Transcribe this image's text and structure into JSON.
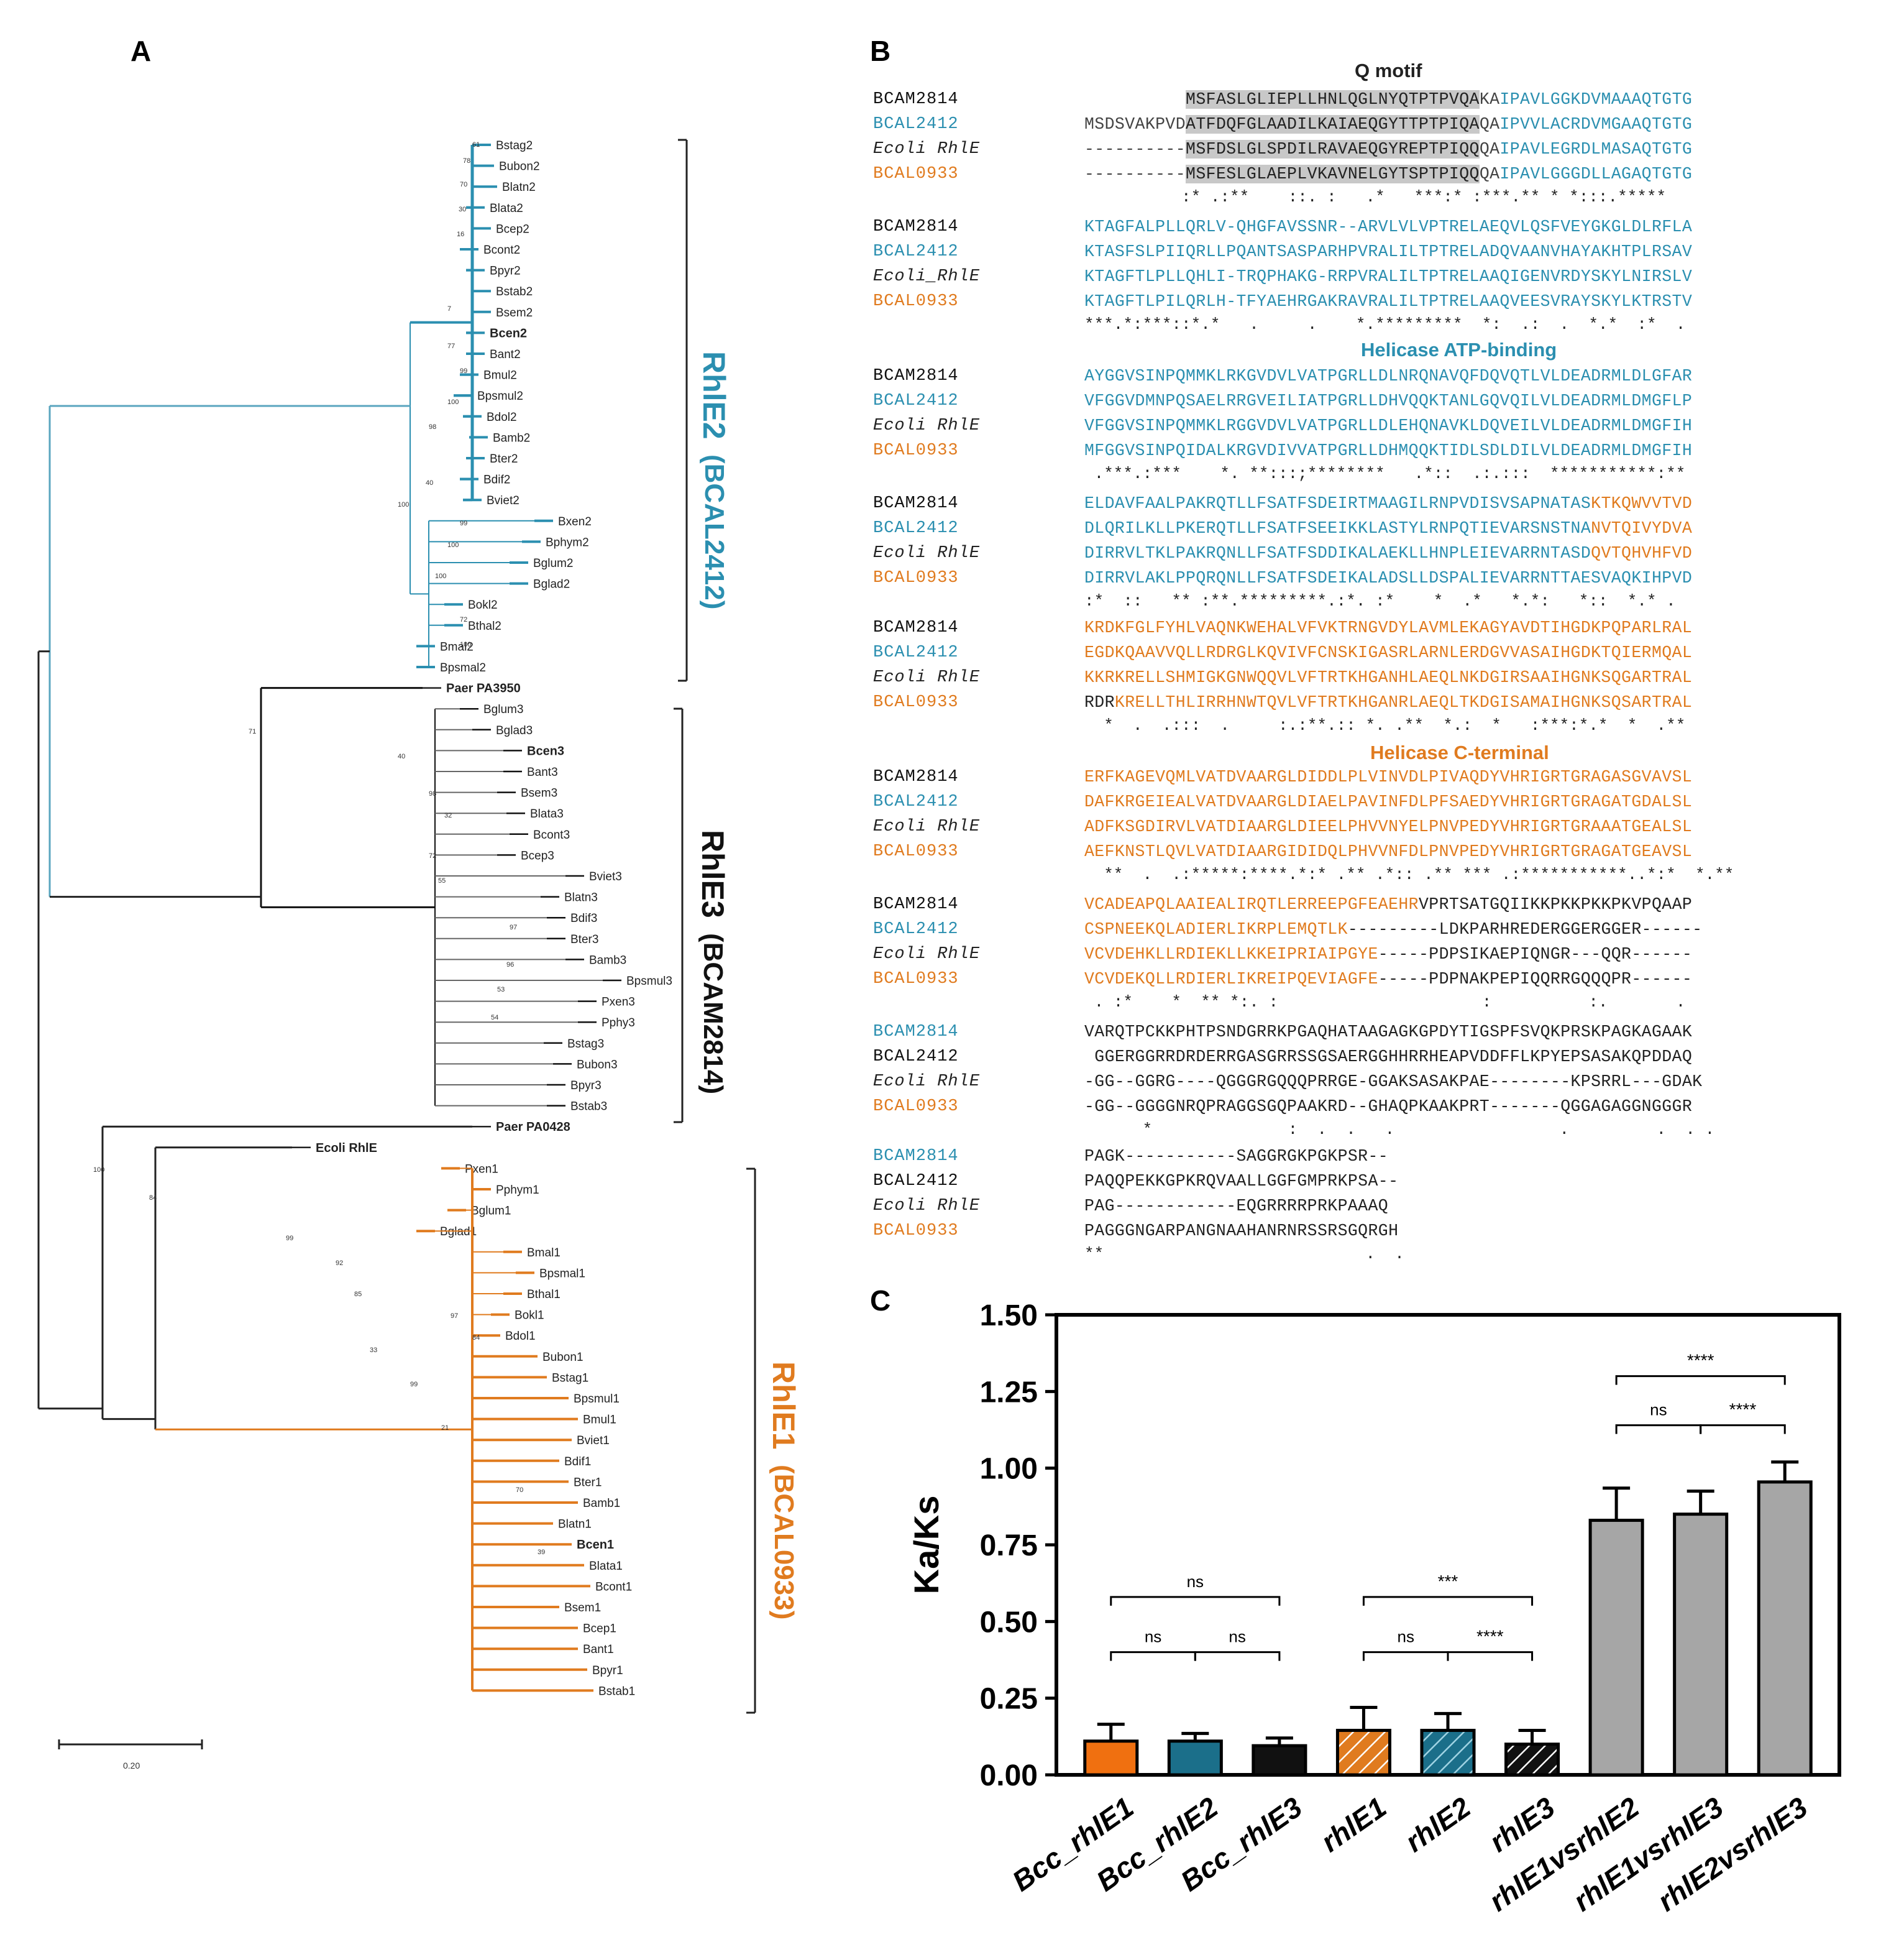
{
  "panels": {
    "a": "A",
    "b": "B",
    "c": "C"
  },
  "colors": {
    "rhle1": "#e07b1f",
    "rhle2": "#2b8fb0",
    "rhle3": "#111111",
    "other": "#222222",
    "highlight": "#c8c8c8",
    "bar_grey": "#a6a6a6",
    "bar_teal": "#1b6f8a"
  },
  "tree": {
    "scale_label": "0.20",
    "clades": {
      "rhle2": {
        "name": "RhlE2",
        "locus": "(BCAL2412)"
      },
      "rhle3": {
        "name": "RhlE3",
        "locus": "(BCAM2814)"
      },
      "rhle1": {
        "name": "RhlE1",
        "locus": "(BCAL0933)"
      }
    },
    "rhle2_leaves": [
      "Bstag2",
      "Bubon2",
      "Blatn2",
      "Blata2",
      "Bcep2",
      "Bcont2",
      "Bpyr2",
      "Bstab2",
      "Bsem2",
      "Bcen2",
      "Bant2",
      "Bmul2",
      "Bpsmul2",
      "Bdol2",
      "Bamb2",
      "Bter2",
      "Bdif2",
      "Bviet2",
      "Bxen2",
      "Bphym2",
      "Bglum2",
      "Bglad2",
      "Bokl2",
      "Bthal2",
      "Bmal2",
      "Bpsmal2"
    ],
    "mid_leaves": [
      "Paer PA3950"
    ],
    "rhle3_leaves": [
      "Bglum3",
      "Bglad3",
      "Bcen3",
      "Bant3",
      "Bsem3",
      "Blata3",
      "Bcont3",
      "Bcep3",
      "Bviet3",
      "Blatn3",
      "Bdif3",
      "Bter3",
      "Bamb3",
      "Bpsmul3",
      "Pxen3",
      "Pphy3",
      "Bstag3",
      "Bubon3",
      "Bpyr3",
      "Bstab3"
    ],
    "outer_leaves": [
      "Paer PA0428",
      "Ecoli RhlE"
    ],
    "rhle1_leaves": [
      "Pxen1",
      "Pphym1",
      "Bglum1",
      "Bglad1",
      "Bmal1",
      "Bpsmal1",
      "Bthal1",
      "Bokl1",
      "Bdol1",
      "Bubon1",
      "Bstag1",
      "Bpsmul1",
      "Bmul1",
      "Bviet1",
      "Bdif1",
      "Bter1",
      "Bamb1",
      "Blatn1",
      "Bcen1",
      "Blata1",
      "Bcont1",
      "Bsem1",
      "Bcep1",
      "Bant1",
      "Bpyr1",
      "Bstab1"
    ],
    "bold_leaves": [
      "Bcen2",
      "Paer PA3950",
      "Bcen3",
      "Paer PA0428",
      "Ecoli RhlE",
      "Bcen1"
    ],
    "bootstrap_values": [
      "61",
      "78",
      "70",
      "30",
      "16",
      "7",
      "77",
      "99",
      "100",
      "98",
      "40",
      "100",
      "99",
      "100",
      "100",
      "72",
      "100",
      "71",
      "40",
      "98",
      "32",
      "72",
      "55",
      "97",
      "96",
      "53",
      "54",
      "100",
      "84",
      "99",
      "92",
      "85",
      "97",
      "84",
      "33",
      "99",
      "21",
      "70",
      "39"
    ]
  },
  "alignment": {
    "domains": {
      "q_motif": "Q motif",
      "atp_binding": "Helicase ATP-binding",
      "c_terminal": "Helicase C-terminal"
    },
    "blocks": [
      {
        "rows": [
          {
            "name": "BCAM2814",
            "name_color": "#111111",
            "segments": [
              {
                "t": "          ",
                "c": "#444444"
              },
              {
                "t": "MSFASLGLIEPLLHNLQGLNYQTPTPVQA",
                "c": "#222222",
                "h": true
              },
              {
                "t": "KA",
                "c": "#444444"
              },
              {
                "t": "IPAVLGGKDVMAAAQTGTG",
                "c": "#2b8fb0"
              }
            ]
          },
          {
            "name": "BCAL2412",
            "name_color": "#2b8fb0",
            "segments": [
              {
                "t": "MSDSVAKPVD",
                "c": "#444444"
              },
              {
                "t": "ATFDQFGLAADILKAIAEQGYTTPTPIQA",
                "c": "#222222",
                "h": true
              },
              {
                "t": "QA",
                "c": "#444444"
              },
              {
                "t": "IPVVLACRDVMGAAQTGTG",
                "c": "#2b8fb0"
              }
            ]
          },
          {
            "name": "Ecoli RhlE",
            "name_color": "#222222",
            "italic": true,
            "segments": [
              {
                "t": "----------",
                "c": "#444444"
              },
              {
                "t": "MSFDSLGLSPDILRAVAEQGYREPTPIQQ",
                "c": "#222222",
                "h": true
              },
              {
                "t": "QA",
                "c": "#444444"
              },
              {
                "t": "IPAVLEGRDLMASAQTGTG",
                "c": "#2b8fb0"
              }
            ]
          },
          {
            "name": "BCAL0933",
            "name_color": "#e07b1f",
            "segments": [
              {
                "t": "----------",
                "c": "#444444"
              },
              {
                "t": "MSFESLGLAEPLVKAVNELGYTSPTPIQQ",
                "c": "#222222",
                "h": true
              },
              {
                "t": "QA",
                "c": "#444444"
              },
              {
                "t": "IPAVLGGGDLLAGAQTGTG",
                "c": "#2b8fb0"
              }
            ]
          }
        ],
        "cons": "          :* .:**    ::. :   .*   ***:* :***.** * *:::.*****"
      },
      {
        "rows": [
          {
            "name": "BCAM2814",
            "name_color": "#111111",
            "segments": [
              {
                "t": "KTAGFALPLLQRLV-QHGFAVSSNR--ARVLVLVPTRELAEQVLQSFVEYGKGLDLRFLA",
                "c": "#2b8fb0"
              }
            ]
          },
          {
            "name": "BCAL2412",
            "name_color": "#2b8fb0",
            "segments": [
              {
                "t": "KTASFSLPIIQRLLPQANTSASPARHPVRALILTPTRELADQVAANVHAYAKHTPLRSAV",
                "c": "#2b8fb0"
              }
            ]
          },
          {
            "name": "Ecoli_RhlE",
            "name_color": "#222222",
            "italic": true,
            "segments": [
              {
                "t": "KTAGFTLPLLQHLI-TRQPHAKG-RRPVRALILTPTRELAAQIGENVRDYSKYLNIRSLV",
                "c": "#2b8fb0"
              }
            ]
          },
          {
            "name": "BCAL0933",
            "name_color": "#e07b1f",
            "segments": [
              {
                "t": "KTAGFTLPILQRLH-TFYAEHRGAKRAVRALILTPTRELAAQVEESVRAYSKYLKTRSTV",
                "c": "#2b8fb0"
              }
            ]
          }
        ],
        "cons": "***.*:***::*.*   .     .    *.*********  *:  .:  .  *.*  :*  ."
      },
      {
        "rows": [
          {
            "name": "BCAM2814",
            "name_color": "#111111",
            "segments": [
              {
                "t": "AYGGVSINPQMMKLRKGVDVLVATPGRLLDLNRQNAVQFDQVQTLVLDEADRMLDLGFAR",
                "c": "#2b8fb0"
              }
            ]
          },
          {
            "name": "BCAL2412",
            "name_color": "#2b8fb0",
            "segments": [
              {
                "t": "VFGGVDMNPQSAELRRGVEILIATPGRLLDHVQQKTANLGQVQILVLDEADRMLDMGFLP",
                "c": "#2b8fb0"
              }
            ]
          },
          {
            "name": "Ecoli RhlE",
            "name_color": "#222222",
            "italic": true,
            "segments": [
              {
                "t": "VFGGVSINPQMMKLRGGVDVLVATPGRLLDLEHQNAVKLDQVEILVLDEADRMLDMGFIH",
                "c": "#2b8fb0"
              }
            ]
          },
          {
            "name": "BCAL0933",
            "name_color": "#e07b1f",
            "segments": [
              {
                "t": "MFGGVSINPQIDALKRGVDIVVATPGRLLDHMQQKTIDLSDLDILVLDEADRMLDMGFIH",
                "c": "#2b8fb0"
              }
            ]
          }
        ],
        "cons": " .***.:***    *. **:::;********   .*::  .:.:::  ***********:**"
      },
      {
        "rows": [
          {
            "name": "BCAM2814",
            "name_color": "#111111",
            "segments": [
              {
                "t": "ELDAVFAALPAKRQTLLFSATFSDEIRTMAAGILRNPVDISVSAPNATAS",
                "c": "#2b8fb0"
              },
              {
                "t": "KTKQWVVTVD",
                "c": "#e07b1f"
              }
            ]
          },
          {
            "name": "BCAL2412",
            "name_color": "#2b8fb0",
            "segments": [
              {
                "t": "DLQRILKLLPKERQTLLFSATFSEEIKKLASTYLRNPQTIEVARSNSTNA",
                "c": "#2b8fb0"
              },
              {
                "t": "NVTQIVYDVA",
                "c": "#e07b1f"
              }
            ]
          },
          {
            "name": "Ecoli RhlE",
            "name_color": "#222222",
            "italic": true,
            "segments": [
              {
                "t": "DIRRVLTKLPAKRQNLLFSATFSDDIKALAEKLLHNPLEIEVARRNTASD",
                "c": "#2b8fb0"
              },
              {
                "t": "QVTQHVHFVD",
                "c": "#e07b1f"
              }
            ]
          },
          {
            "name": "BCAL0933",
            "name_color": "#e07b1f",
            "segments": [
              {
                "t": "DIRRVLAKLPPQRQNLLFSATFSDEIKALADSLLDSPALIEVARRNTTAESVAQKIHPVD",
                "c": "#2b8fb0"
              }
            ]
          }
        ],
        "cons": ":*  ::   ** :**.*********.:*. :*    *  .*   *.*:   *::  *.* ."
      },
      {
        "rows": [
          {
            "name": "BCAM2814",
            "name_color": "#111111",
            "segments": [
              {
                "t": "KRDKFGLFYHLVAQNKWEHALVFVKTRNGVDYLAVMLEKAGYAVDTIHGDKPQPARLRAL",
                "c": "#e07b1f"
              }
            ]
          },
          {
            "name": "BCAL2412",
            "name_color": "#2b8fb0",
            "segments": [
              {
                "t": "EGDKQAAVVQLLRDRGLKQVIVFCNSKIGASRLARNLERDGVVASAIHGDKTQIERMQAL",
                "c": "#e07b1f"
              }
            ]
          },
          {
            "name": "Ecoli RhlE",
            "name_color": "#222222",
            "italic": true,
            "segments": [
              {
                "t": "KKRKRELLSHMIGKGNWQQVLVFTRTKHGANHLAEQLNKDGIRSAAIHGNKSQGARTRAL",
                "c": "#e07b1f"
              }
            ]
          },
          {
            "name": "BCAL0933",
            "name_color": "#e07b1f",
            "segments": [
              {
                "t": "RDR",
                "c": "#222222"
              },
              {
                "t": "KRELLTHLIRRHNWTQVLVFTRTKHGANRLAEQLTKDGISAMAIHGNKSQSARTRAL",
                "c": "#e07b1f"
              }
            ]
          }
        ],
        "cons": "  *  .  .:::  .     :.:**.:: *. .**  *.:  *   :***:*.*  *  .**"
      },
      {
        "rows": [
          {
            "name": "BCAM2814",
            "name_color": "#111111",
            "segments": [
              {
                "t": "ERFKAGEVQMLVATDVAARGLDIDDLPLVINVDLPIVAQDYVHRIGRTGRAGASGVAVSL",
                "c": "#e07b1f"
              }
            ]
          },
          {
            "name": "BCAL2412",
            "name_color": "#2b8fb0",
            "segments": [
              {
                "t": "DAFKRGEIEALVATDVAARGLDIAELPAVINFDLPFSAEDYVHRIGRTGRAGATGDALSL",
                "c": "#e07b1f"
              }
            ]
          },
          {
            "name": "Ecoli RhlE",
            "name_color": "#222222",
            "italic": true,
            "segments": [
              {
                "t": "ADFKSGDIRVLVATDIAARGLDIEELPHVVNYELPNVPEDYVHRIGRTGRAAATGEALSL",
                "c": "#e07b1f"
              }
            ]
          },
          {
            "name": "BCAL0933",
            "name_color": "#e07b1f",
            "segments": [
              {
                "t": "AEFKNSTLQVLVATDIAARGIDIDQLPHVVNFDLPNVPEDYVHRIGRTGRAGATGEAVSL",
                "c": "#e07b1f"
              }
            ]
          }
        ],
        "cons": "  **  .  .:*****:****.*:* .** .*:: .** *** .:***********..*:*  *.**"
      },
      {
        "rows": [
          {
            "name": "BCAM2814",
            "name_color": "#111111",
            "segments": [
              {
                "t": "VCADEAPQLAAIEALIRQTLERREEPGFEAEHR",
                "c": "#e07b1f"
              },
              {
                "t": "VPRTSATGQIIKKPKKPKKPKVPQAAP",
                "c": "#222222"
              }
            ]
          },
          {
            "name": "BCAL2412",
            "name_color": "#2b8fb0",
            "segments": [
              {
                "t": "CSPNEEKQLADIERLIKRPLEMQTLK",
                "c": "#e07b1f"
              },
              {
                "t": "---------LDKPARHREDERGGERGGER------",
                "c": "#222222"
              }
            ]
          },
          {
            "name": "Ecoli RhlE",
            "name_color": "#222222",
            "italic": true,
            "segments": [
              {
                "t": "VCVDEHKLLRDIEKLLKKEIPRIAIPGYE",
                "c": "#e07b1f"
              },
              {
                "t": "-----PDPSIKAEPIQNGR---QQR------",
                "c": "#222222"
              }
            ]
          },
          {
            "name": "BCAL0933",
            "name_color": "#e07b1f",
            "segments": [
              {
                "t": "VCVDEKQLLRDIERLIKREIPQEVIAGFE",
                "c": "#e07b1f"
              },
              {
                "t": "-----PDPNAKPEPIQQRRGQQQPR------",
                "c": "#222222"
              }
            ]
          }
        ],
        "cons": " . :*    *  ** *:. :                     :          :.       ."
      },
      {
        "rows": [
          {
            "name": "BCAM2814",
            "name_color": "#2b8fb0",
            "segments": [
              {
                "t": "VARQTPCKKPHTPSNDGRRKPGAQHATAAGAGKGPDYTIGSPFSVQKPRSKPAGKAGAAK",
                "c": "#222222"
              }
            ]
          },
          {
            "name": "BCAL2412",
            "name_color": "#111111",
            "segments": [
              {
                "t": " GGERGGRRDRDERRGASGRRSSGSAERGGHHRRHEAPVDDFFLKPYEPSASAKQPDDAQ",
                "c": "#222222"
              }
            ]
          },
          {
            "name": "Ecoli RhlE",
            "name_color": "#222222",
            "italic": true,
            "segments": [
              {
                "t": "-GG--GGRG----QGGGRGQQQPRRGE-GGAKSASAKPAE--------KPSRRL---GDAK",
                "c": "#222222"
              }
            ]
          },
          {
            "name": "BCAL0933",
            "name_color": "#e07b1f",
            "segments": [
              {
                "t": "-GG--GGGGNRQPRAGGSGQPAAKRD--GHAQPKAAKPRT-------QGGAGAGGNGGGR",
                "c": "#222222"
              }
            ]
          }
        ],
        "cons": "      *              :  .  .   .                 .         .  . ."
      },
      {
        "rows": [
          {
            "name": "BCAM2814",
            "name_color": "#2b8fb0",
            "segments": [
              {
                "t": "PAGK-----------SAGGRGKPGKPSR--",
                "c": "#222222"
              }
            ]
          },
          {
            "name": "BCAL2412",
            "name_color": "#111111",
            "segments": [
              {
                "t": "PAQQPEKKGPKRQVAALLGGFGMPRKPSA--",
                "c": "#222222"
              }
            ]
          },
          {
            "name": "Ecoli RhlE",
            "name_color": "#222222",
            "italic": true,
            "segments": [
              {
                "t": "PAG------------EQGRRRRPRKPAAAQ",
                "c": "#222222"
              }
            ]
          },
          {
            "name": "BCAL0933",
            "name_color": "#e07b1f",
            "segments": [
              {
                "t": "PAGGGNGARPANGNAAHANRNRSSRSGQRGH",
                "c": "#222222"
              }
            ]
          }
        ],
        "cons": "**                           .  ."
      }
    ]
  },
  "chart_data": {
    "type": "bar",
    "title": "",
    "xlabel": "",
    "ylabel": "Ka/Ks",
    "ylim": [
      0,
      1.5
    ],
    "yticks": [
      "0.00",
      "0.25",
      "0.50",
      "0.75",
      "1.00",
      "1.25",
      "1.50"
    ],
    "categories": [
      "Bcc_rhlE1",
      "Bcc_rhlE2",
      "Bcc_rhlE3",
      "rhlE1",
      "rhlE2",
      "rhlE3",
      "rhlE1vsrhlE2",
      "rhlE1vsrhlE3",
      "rhlE2vsrhlE3"
    ],
    "values": [
      0.11,
      0.11,
      0.095,
      0.145,
      0.145,
      0.1,
      0.83,
      0.85,
      0.955
    ],
    "errors": [
      0.055,
      0.025,
      0.025,
      0.075,
      0.055,
      0.045,
      0.105,
      0.075,
      0.065
    ],
    "bar_styles": [
      "orange",
      "teal",
      "black",
      "orange-hatch",
      "teal-hatch",
      "black-hatch",
      "grey",
      "grey",
      "grey"
    ],
    "significance": [
      {
        "from": 0,
        "to": 2,
        "label": "ns",
        "level": 0.58
      },
      {
        "from": 0,
        "to": 1,
        "label": "ns",
        "level": 0.4
      },
      {
        "from": 1,
        "to": 2,
        "label": "ns",
        "level": 0.4
      },
      {
        "from": 3,
        "to": 5,
        "label": "***",
        "level": 0.58
      },
      {
        "from": 3,
        "to": 4,
        "label": "ns",
        "level": 0.4
      },
      {
        "from": 4,
        "to": 5,
        "label": "****",
        "level": 0.4
      },
      {
        "from": 6,
        "to": 8,
        "label": "****",
        "level": 1.3
      },
      {
        "from": 6,
        "to": 7,
        "label": "ns",
        "level": 1.14
      },
      {
        "from": 7,
        "to": 8,
        "label": "****",
        "level": 1.14
      }
    ]
  }
}
